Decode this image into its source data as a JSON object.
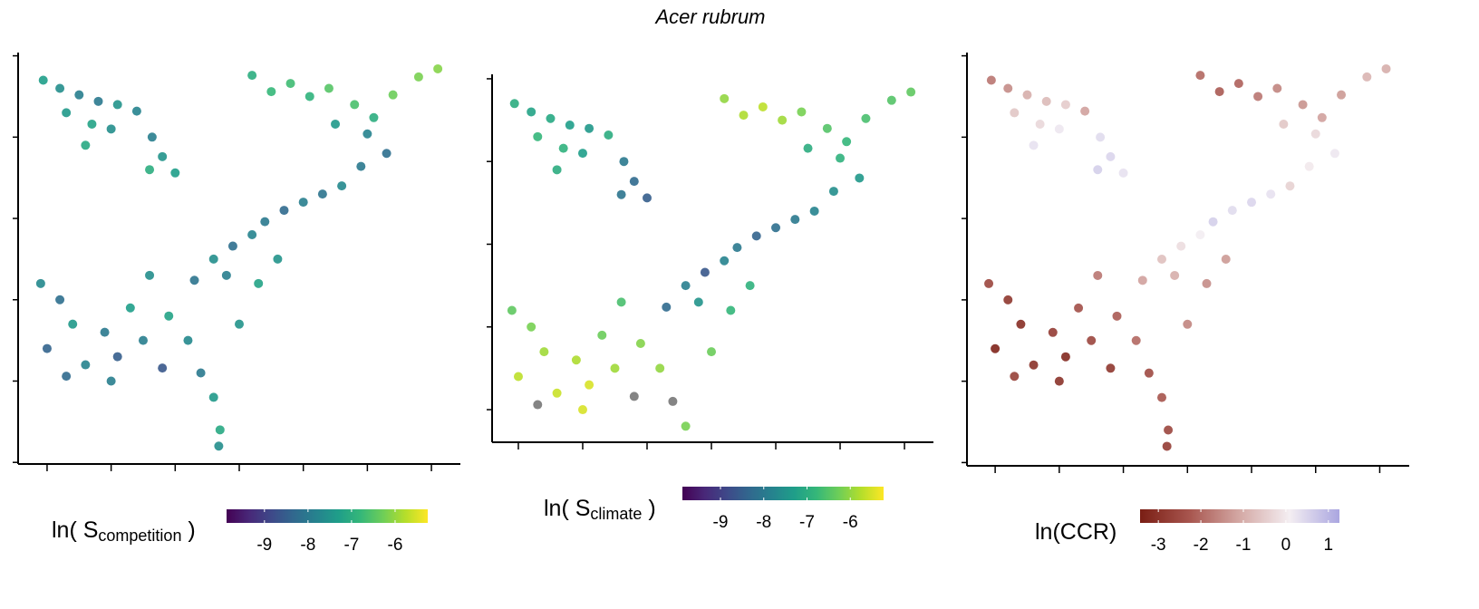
{
  "title": "Acer rubrum",
  "chart_data": [
    {
      "type": "scatter",
      "colorbar_label": {
        "main": "ln( S",
        "sub": "competition",
        "end": " )"
      },
      "xlim": [
        -97.26,
        -62.74
      ],
      "ylim": [
        24.9,
        50.2
      ],
      "xticks": [
        -95,
        -90,
        -85,
        -80,
        -75,
        -70,
        -65
      ],
      "yticks": [
        25,
        30,
        35,
        40,
        45,
        50
      ],
      "colormap": [
        "#440154",
        "#482878",
        "#3e4989",
        "#31688e",
        "#26828e",
        "#1f9e89",
        "#35b779",
        "#6ece58",
        "#b5de2b",
        "#fde725"
      ],
      "colorlim": [
        -9.87,
        -5.25
      ],
      "colorbar_ticks": [
        -9,
        -8,
        -7,
        -6
      ],
      "x": [
        -95.3,
        -94.0,
        -92.5,
        -91.0,
        -89.5,
        -88.0,
        -93.5,
        -91.5,
        -90.0,
        -86.8,
        -86.0,
        -85.0,
        -87.0,
        -92.0,
        -79.0,
        -77.5,
        -76.0,
        -74.5,
        -73.0,
        -71.0,
        -69.5,
        -68.0,
        -66.0,
        -64.5,
        -70.0,
        -72.5,
        -68.5,
        -70.5,
        -72.0,
        -73.5,
        -75.0,
        -76.5,
        -78.0,
        -79.0,
        -80.5,
        -82.0,
        -81.0,
        -83.5,
        -78.5,
        -77.0,
        -95.5,
        -94.0,
        -93.0,
        -95.0,
        -92.0,
        -90.5,
        -89.5,
        -88.5,
        -87.0,
        -87.5,
        -86.0,
        -85.5,
        -84.0,
        -83.0,
        -82.0,
        -81.5,
        -81.6,
        -93.5,
        -90.0,
        -80.0
      ],
      "y": [
        48.5,
        48.0,
        47.6,
        47.2,
        47.0,
        46.6,
        46.5,
        45.8,
        45.5,
        45.0,
        43.8,
        42.8,
        43.0,
        44.5,
        48.8,
        47.8,
        48.3,
        47.5,
        48.0,
        47.0,
        46.2,
        47.6,
        48.7,
        49.2,
        45.2,
        45.8,
        44.0,
        43.2,
        42.0,
        41.5,
        41.0,
        40.5,
        39.8,
        39.0,
        38.3,
        37.5,
        36.5,
        36.2,
        36.0,
        37.5,
        36.0,
        35.0,
        33.5,
        32.0,
        31.0,
        33.0,
        31.5,
        34.5,
        36.5,
        32.5,
        30.8,
        34.0,
        32.5,
        30.5,
        29.0,
        27.0,
        26.0,
        30.3,
        30.0,
        33.5
      ],
      "values": [
        -7.3,
        -7.6,
        -7.9,
        -8.0,
        -7.5,
        -7.8,
        -7.4,
        -7.2,
        -7.6,
        -7.9,
        -7.5,
        -7.3,
        -7.0,
        -7.1,
        -7.0,
        -6.8,
        -6.7,
        -6.9,
        -6.5,
        -6.6,
        -7.0,
        -6.3,
        -6.2,
        -6.1,
        -7.8,
        -7.4,
        -8.2,
        -8.0,
        -7.7,
        -8.1,
        -7.9,
        -8.3,
        -8.0,
        -7.8,
        -8.2,
        -7.6,
        -7.9,
        -8.1,
        -7.2,
        -7.5,
        -7.7,
        -8.2,
        -7.4,
        -8.4,
        -7.8,
        -8.0,
        -8.5,
        -7.3,
        -7.6,
        -7.9,
        -8.6,
        -7.2,
        -7.7,
        -8.0,
        -7.4,
        -7.1,
        -7.6,
        -8.3,
        -7.9,
        -7.5
      ]
    },
    {
      "type": "scatter",
      "colorbar_label": {
        "main": "ln( S",
        "sub": "climate",
        "end": " )"
      },
      "xlim": [
        -97.04,
        -62.75
      ],
      "ylim": [
        28.03,
        50.27
      ],
      "xticks": [
        -95,
        -90,
        -85,
        -80,
        -75,
        -70,
        -65
      ],
      "yticks": [
        30,
        35,
        40,
        45,
        50
      ],
      "colormap": [
        "#440154",
        "#482878",
        "#3e4989",
        "#31688e",
        "#26828e",
        "#1f9e89",
        "#35b779",
        "#6ece58",
        "#b5de2b",
        "#fde725"
      ],
      "colorlim": [
        -9.88,
        -5.23
      ],
      "colorbar_ticks": [
        -9,
        -8,
        -7,
        -6
      ],
      "na_color": "#777777",
      "x": [
        -95.3,
        -94.0,
        -92.5,
        -91.0,
        -89.5,
        -88.0,
        -93.5,
        -91.5,
        -90.0,
        -86.8,
        -86.0,
        -85.0,
        -87.0,
        -92.0,
        -79.0,
        -77.5,
        -76.0,
        -74.5,
        -73.0,
        -71.0,
        -69.5,
        -68.0,
        -66.0,
        -64.5,
        -70.0,
        -72.5,
        -68.5,
        -70.5,
        -72.0,
        -73.5,
        -75.0,
        -76.5,
        -78.0,
        -79.0,
        -80.5,
        -82.0,
        -81.0,
        -83.5,
        -78.5,
        -77.0,
        -95.5,
        -94.0,
        -93.0,
        -95.0,
        -92.0,
        -90.5,
        -89.5,
        -88.5,
        -87.0,
        -87.5,
        -86.0,
        -85.5,
        -84.0,
        -83.0,
        -82.0,
        -93.5,
        -90.0,
        -80.0
      ],
      "y": [
        48.5,
        48.0,
        47.6,
        47.2,
        47.0,
        46.6,
        46.5,
        45.8,
        45.5,
        45.0,
        43.8,
        42.8,
        43.0,
        44.5,
        48.8,
        47.8,
        48.3,
        47.5,
        48.0,
        47.0,
        46.2,
        47.6,
        48.7,
        49.2,
        45.2,
        45.8,
        44.0,
        43.2,
        42.0,
        41.5,
        41.0,
        40.5,
        39.8,
        39.0,
        38.3,
        37.5,
        36.5,
        36.2,
        36.0,
        37.5,
        36.0,
        35.0,
        33.5,
        32.0,
        31.0,
        33.0,
        31.5,
        34.5,
        36.5,
        32.5,
        30.8,
        34.0,
        32.5,
        30.5,
        29.0,
        30.3,
        30.0,
        33.5
      ],
      "values": [
        -7.0,
        -7.2,
        -7.1,
        -7.3,
        -7.4,
        -7.0,
        -6.8,
        -6.9,
        -7.3,
        -8.0,
        -8.3,
        -8.5,
        -8.1,
        -7.0,
        -6.0,
        -5.8,
        -5.7,
        -5.9,
        -6.2,
        -6.5,
        -6.8,
        -6.6,
        -6.5,
        -6.4,
        -6.9,
        -7.0,
        -7.4,
        -7.6,
        -7.8,
        -8.0,
        -8.2,
        -8.4,
        -8.0,
        -7.8,
        -8.6,
        -7.9,
        -7.5,
        -8.3,
        -6.8,
        -6.9,
        -6.4,
        -6.2,
        -5.9,
        -5.7,
        -5.6,
        -5.8,
        -5.5,
        -6.3,
        -6.6,
        -5.9,
        null,
        -6.1,
        -6.0,
        null,
        -6.2,
        null,
        -5.5,
        -6.3
      ]
    },
    {
      "type": "scatter",
      "colorbar_label": {
        "main": "ln(CCR)"
      },
      "xlim": [
        -97.2,
        -62.7
      ],
      "ylim": [
        24.8,
        50.2
      ],
      "xticks": [
        -95,
        -90,
        -85,
        -80,
        -75,
        -70,
        -65
      ],
      "yticks": [
        25,
        30,
        35,
        40,
        45,
        50
      ],
      "colormap": [
        "#7a1e14",
        "#a8564f",
        "#d4a9a5",
        "#f4eef2",
        "#aaa6e0"
      ],
      "colorlim": [
        -3.43,
        1.26
      ],
      "colorbar_ticks": [
        -3,
        -2,
        -1,
        0,
        1
      ],
      "x": [
        -95.3,
        -94.0,
        -92.5,
        -91.0,
        -89.5,
        -88.0,
        -93.5,
        -91.5,
        -90.0,
        -86.8,
        -86.0,
        -85.0,
        -87.0,
        -92.0,
        -79.0,
        -77.5,
        -76.0,
        -74.5,
        -73.0,
        -71.0,
        -69.5,
        -68.0,
        -66.0,
        -64.5,
        -70.0,
        -72.5,
        -68.5,
        -70.5,
        -72.0,
        -73.5,
        -75.0,
        -76.5,
        -78.0,
        -79.0,
        -80.5,
        -82.0,
        -81.0,
        -83.5,
        -78.5,
        -77.0,
        -95.5,
        -94.0,
        -93.0,
        -95.0,
        -92.0,
        -90.5,
        -89.5,
        -88.5,
        -87.0,
        -87.5,
        -86.0,
        -85.5,
        -84.0,
        -83.0,
        -82.0,
        -81.5,
        -81.6,
        -93.5,
        -90.0,
        -80.0
      ],
      "y": [
        48.5,
        48.0,
        47.6,
        47.2,
        47.0,
        46.6,
        46.5,
        45.8,
        45.5,
        45.0,
        43.8,
        42.8,
        43.0,
        44.5,
        48.8,
        47.8,
        48.3,
        47.5,
        48.0,
        47.0,
        46.2,
        47.6,
        48.7,
        49.2,
        45.2,
        45.8,
        44.0,
        43.2,
        42.0,
        41.5,
        41.0,
        40.5,
        39.8,
        39.0,
        38.3,
        37.5,
        36.5,
        36.2,
        36.0,
        37.5,
        36.0,
        35.0,
        33.5,
        32.0,
        31.0,
        33.0,
        31.5,
        34.5,
        36.5,
        32.5,
        30.8,
        34.0,
        32.5,
        30.5,
        29.0,
        27.0,
        26.0,
        30.3,
        30.0,
        33.5
      ],
      "values": [
        -1.8,
        -1.5,
        -1.0,
        -0.8,
        -0.5,
        -1.2,
        -0.6,
        -0.3,
        0.2,
        0.4,
        0.5,
        0.3,
        0.6,
        0.3,
        -2.0,
        -2.2,
        -2.1,
        -1.8,
        -1.6,
        -1.4,
        -1.2,
        -1.3,
        -0.9,
        -1.0,
        -0.3,
        -0.6,
        0.2,
        0.0,
        -0.4,
        0.3,
        0.5,
        0.4,
        0.6,
        0.1,
        -0.2,
        -0.7,
        -1.0,
        -1.2,
        -1.5,
        -1.3,
        -2.6,
        -2.9,
        -3.1,
        -3.3,
        -3.0,
        -2.8,
        -3.2,
        -2.4,
        -1.8,
        -2.6,
        -2.9,
        -2.2,
        -2.0,
        -2.5,
        -2.3,
        -2.6,
        -2.8,
        -2.7,
        -3.0,
        -1.6
      ]
    }
  ]
}
